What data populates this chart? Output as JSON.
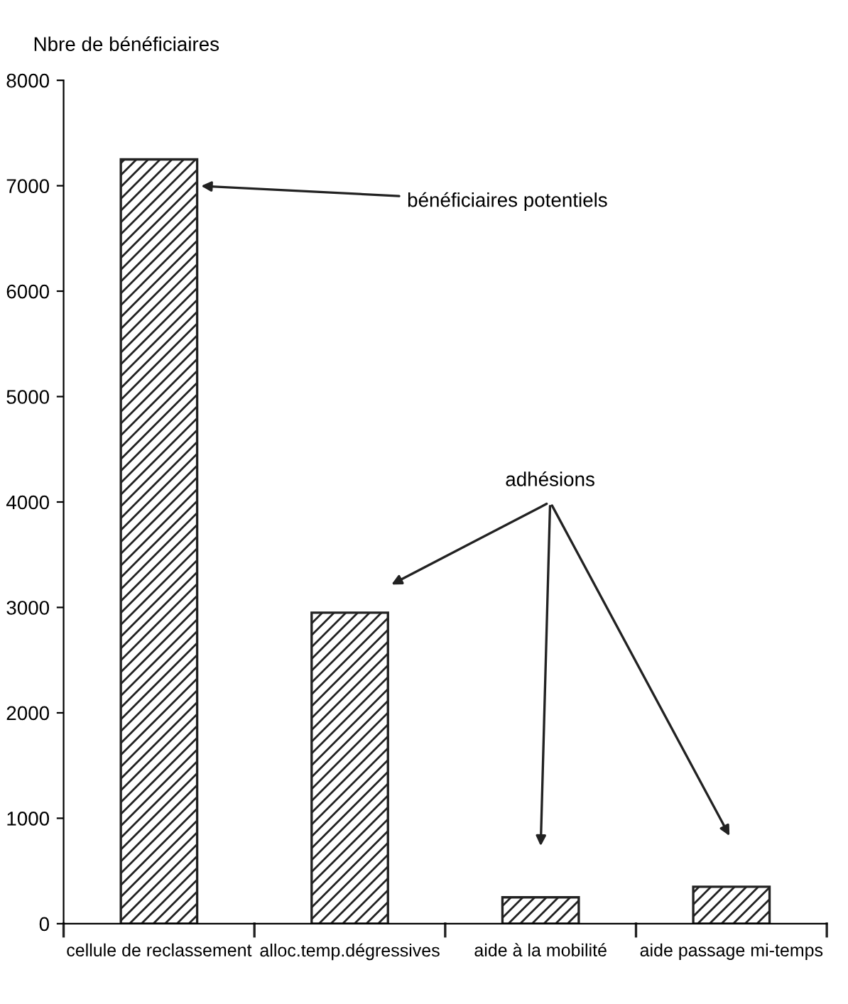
{
  "chart_data": {
    "type": "bar",
    "ylabel": "Nbre de bénéficiaires",
    "categories": [
      "cellule de reclassement",
      "alloc.temp.dégressives",
      "aide à la mobilité",
      "aide passage mi-temps"
    ],
    "values": [
      7250,
      2950,
      250,
      350
    ],
    "color": "#222222",
    "ylim": [
      0,
      8000
    ],
    "yticks": [
      0,
      1000,
      2000,
      3000,
      4000,
      5000,
      6000,
      7000,
      8000
    ],
    "grid": false,
    "legend": false,
    "annotations": [
      "bénéficiaires potentiels",
      "adhésions"
    ]
  }
}
